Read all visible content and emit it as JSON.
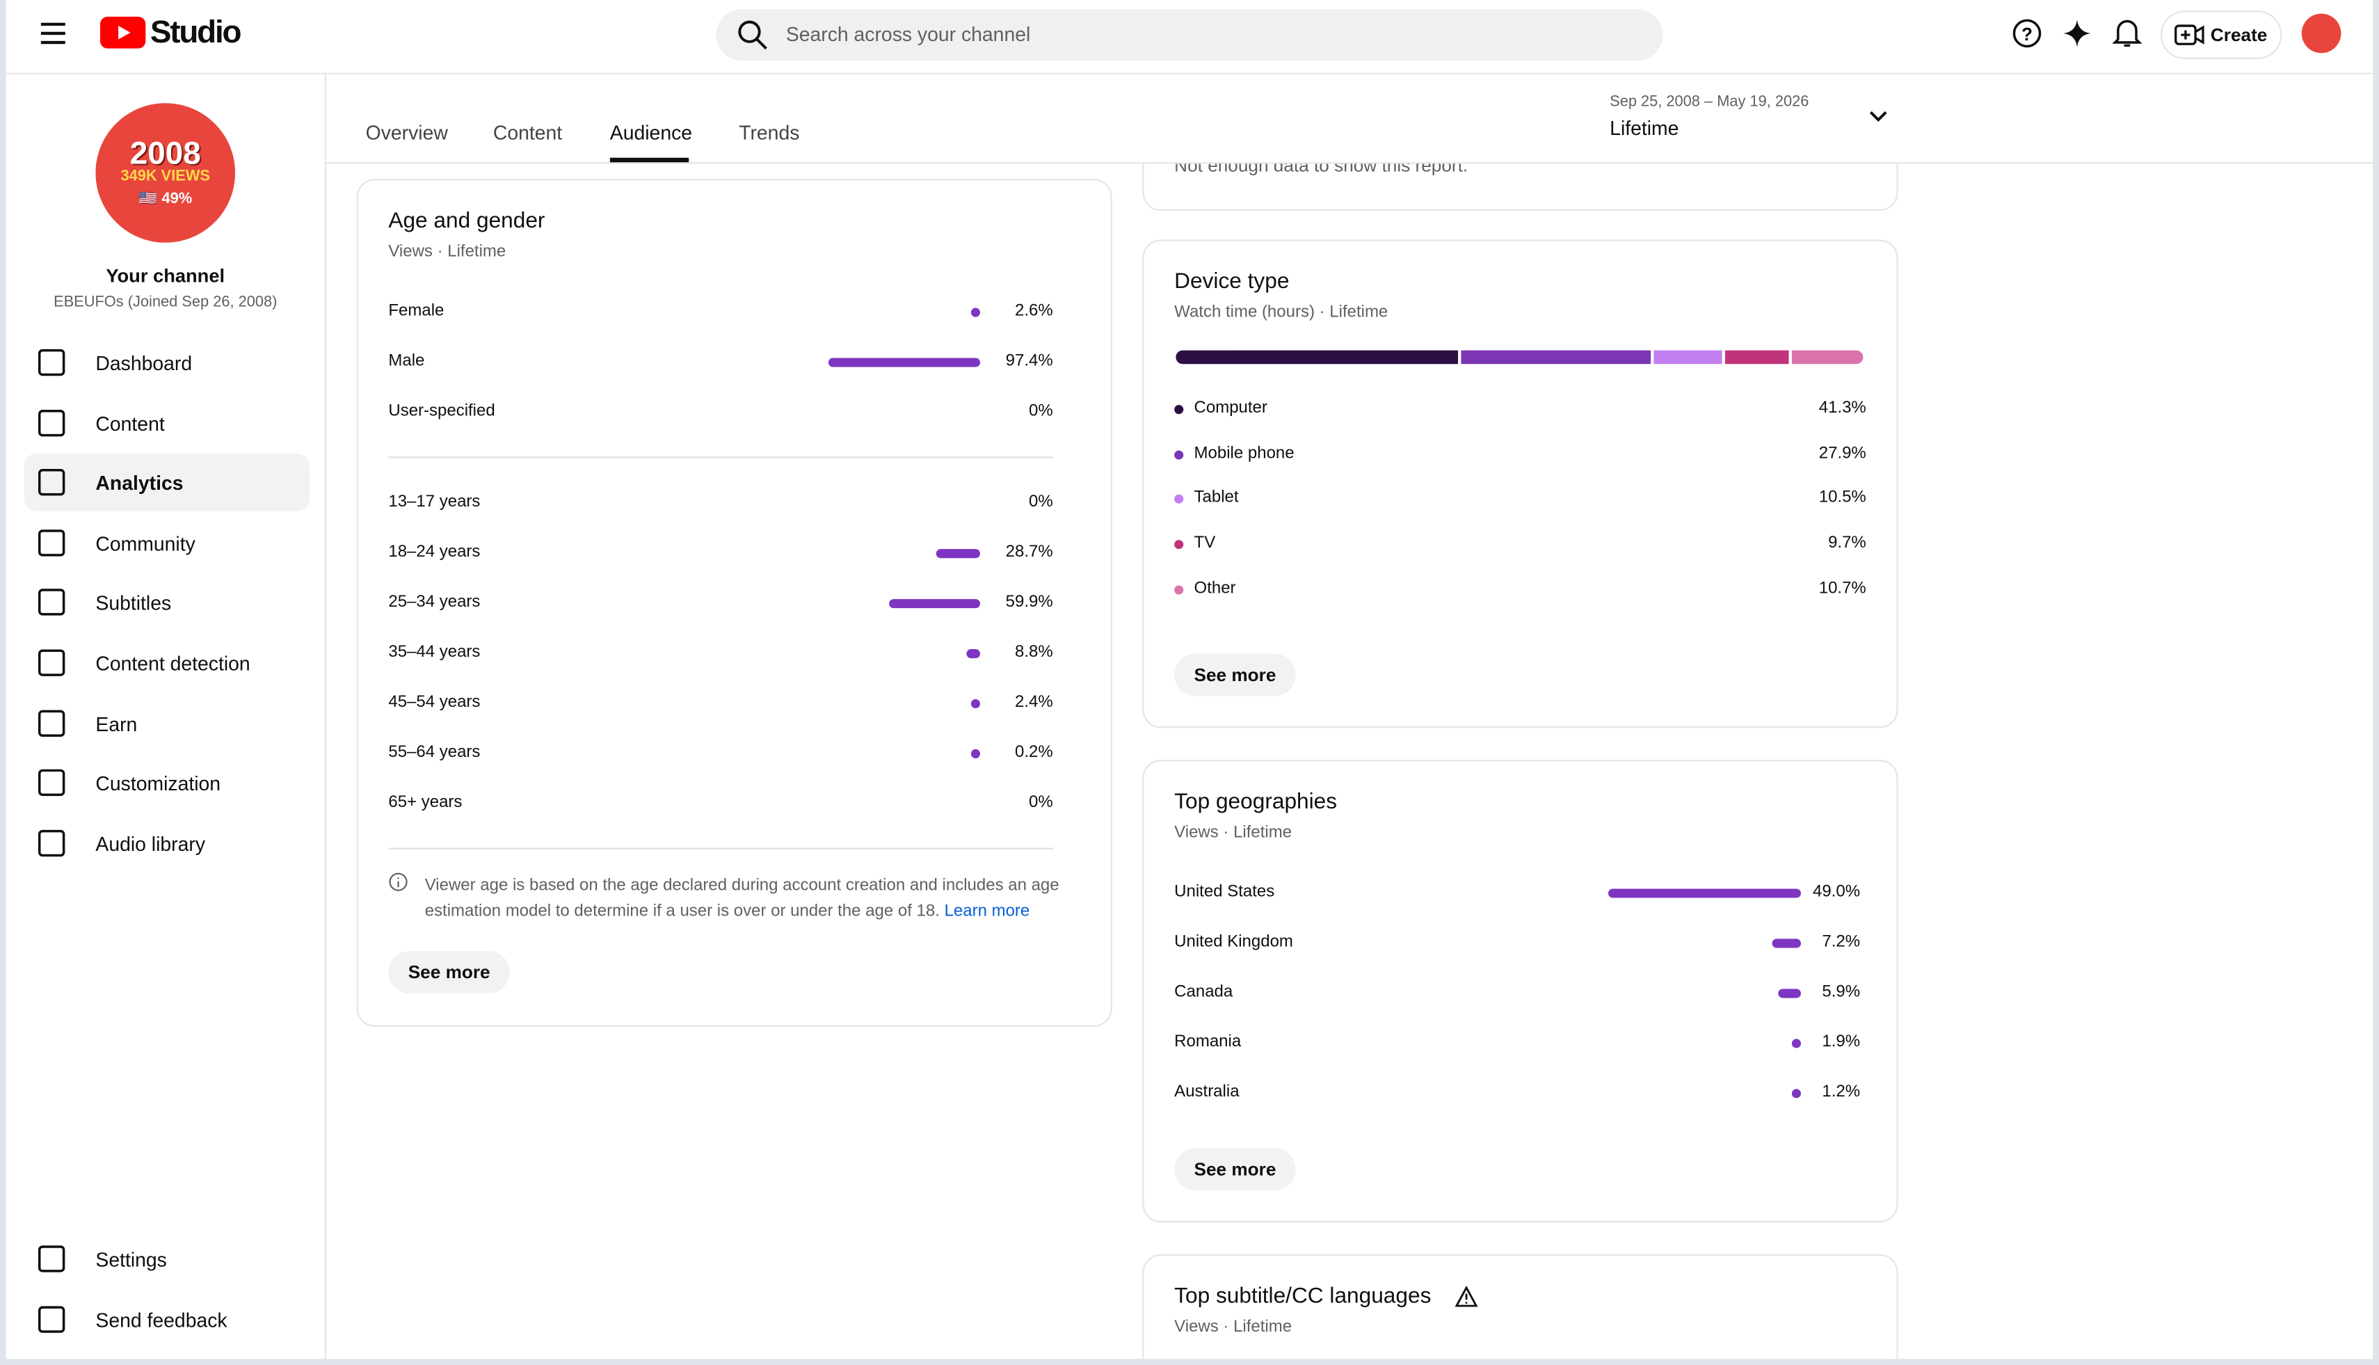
{
  "header": {
    "logo": "Studio",
    "search_placeholder": "Search across your channel",
    "create": "Create"
  },
  "sidebar": {
    "avatar_lines": [
      "2008",
      "349K VIEWS",
      "🇺🇸 49%"
    ],
    "channel_title": "Your channel",
    "channel_sub": "EBEUFOs (Joined Sep 26, 2008)",
    "nav": [
      "Dashboard",
      "Content",
      "Analytics",
      "Community",
      "Subtitles",
      "Content detection",
      "Earn",
      "Customization",
      "Audio library"
    ],
    "bottom_nav": [
      "Settings",
      "Send feedback"
    ]
  },
  "tabs": [
    "Overview",
    "Content",
    "Audience",
    "Trends"
  ],
  "date_range": {
    "dates": "Sep 25, 2008 – May 19, 2026",
    "label": "Lifetime"
  },
  "cut_text": "Not enough data to show this report.",
  "age_gender": {
    "title": "Age and gender",
    "subtitle": "Views · Lifetime",
    "gender": [
      {
        "label": "Female",
        "value": 2.6,
        "value_label": "2.6%"
      },
      {
        "label": "Male",
        "value": 97.4,
        "value_label": "97.4%"
      },
      {
        "label": "User-specified",
        "value": 0,
        "value_label": "0%"
      }
    ],
    "age": [
      {
        "label": "13–17 years",
        "value": 0,
        "value_label": "0%"
      },
      {
        "label": "18–24 years",
        "value": 28.7,
        "value_label": "28.7%"
      },
      {
        "label": "25–34 years",
        "value": 59.9,
        "value_label": "59.9%"
      },
      {
        "label": "35–44 years",
        "value": 8.8,
        "value_label": "8.8%"
      },
      {
        "label": "45–54 years",
        "value": 2.4,
        "value_label": "2.4%"
      },
      {
        "label": "55–64 years",
        "value": 0.2,
        "value_label": "0.2%"
      },
      {
        "label": "65+ years",
        "value": 0,
        "value_label": "0%"
      }
    ],
    "note": "Viewer age is based on the age declared during account creation and includes an age estimation model to determine if a user is over or under the age of 18.",
    "learn_more": "Learn more",
    "see_more": "See more"
  },
  "device_type": {
    "title": "Device type",
    "subtitle": "Watch time (hours) · Lifetime",
    "items": [
      {
        "label": "Computer",
        "value": 41.3,
        "value_label": "41.3%",
        "color": "#2b0f45"
      },
      {
        "label": "Mobile phone",
        "value": 27.9,
        "value_label": "27.9%",
        "color": "#7c35b5"
      },
      {
        "label": "Tablet",
        "value": 10.5,
        "value_label": "10.5%",
        "color": "#c17ff0"
      },
      {
        "label": "TV",
        "value": 9.7,
        "value_label": "9.7%",
        "color": "#c2347a"
      },
      {
        "label": "Other",
        "value": 10.7,
        "value_label": "10.7%",
        "color": "#da74a8"
      }
    ],
    "see_more": "See more"
  },
  "geographies": {
    "title": "Top geographies",
    "subtitle": "Views · Lifetime",
    "items": [
      {
        "label": "United States",
        "value": 49.0,
        "value_label": "49.0%"
      },
      {
        "label": "United Kingdom",
        "value": 7.2,
        "value_label": "7.2%"
      },
      {
        "label": "Canada",
        "value": 5.9,
        "value_label": "5.9%"
      },
      {
        "label": "Romania",
        "value": 1.9,
        "value_label": "1.9%"
      },
      {
        "label": "Australia",
        "value": 1.2,
        "value_label": "1.2%"
      }
    ],
    "see_more": "See more"
  },
  "subtitle_languages": {
    "title": "Top subtitle/CC languages",
    "subtitle": "Views · Lifetime"
  }
}
